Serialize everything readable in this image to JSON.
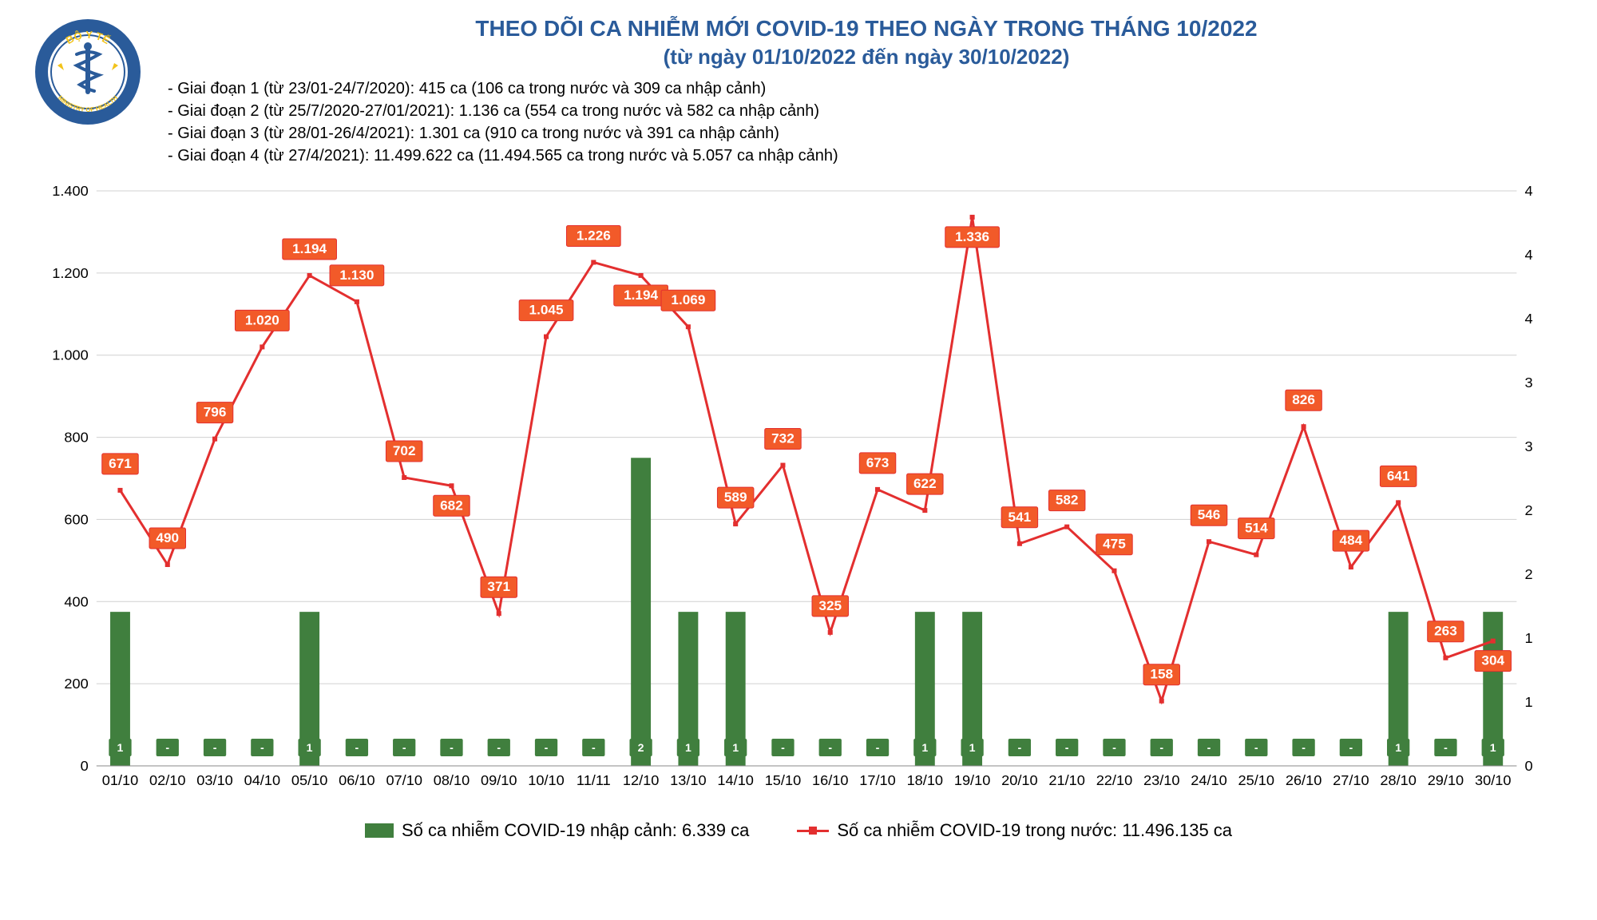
{
  "title_main": "THEO DÕI CA NHIỄM MỚI COVID-19 THEO NGÀY TRONG THÁNG 10/2022",
  "title_sub": "(từ ngày 01/10/2022 đến ngày 30/10/2022)",
  "phases": [
    "- Giai đoạn 1 (từ 23/01-24/7/2020): 415 ca (106 ca trong nước và 309 ca nhập cảnh)",
    "- Giai đoạn 2 (từ 25/7/2020-27/01/2021): 1.136 ca (554 ca trong nước và 582 ca nhập cảnh)",
    "- Giai đoạn 3 (từ 28/01-26/4/2021): 1.301 ca (910 ca trong nước và 391 ca nhập cảnh)",
    "- Giai đoạn 4 (từ 27/4/2021): 11.499.622 ca (11.494.565 ca trong nước và 5.057 ca nhập cảnh)"
  ],
  "legend_bar": "Số ca nhiễm COVID-19 nhập cảnh: 6.339 ca",
  "legend_line": "Số ca nhiễm COVID-19 trong nước: 11.496.135 ca",
  "chart": {
    "type": "combo-bar-line",
    "background_color": "#ffffff",
    "grid_color": "#d0d0d0",
    "bar_color": "#407f3e",
    "line_color": "#e32f2f",
    "label_bg": "#f25a29",
    "label_text_color": "#ffffff",
    "axis_font_size": 18,
    "label_font_size": 17,
    "bar_label_font_size": 14,
    "line_width": 3,
    "marker_size": 6,
    "y_left": {
      "min": 0,
      "max": 1400,
      "step": 200,
      "ticks": [
        "0",
        "200",
        "400",
        "600",
        "800",
        "1.000",
        "1.200",
        "1.400"
      ]
    },
    "y_right": {
      "min": 0,
      "max": 4.5,
      "ticks": [
        0,
        1,
        1,
        2,
        2,
        3,
        3,
        4,
        4,
        4
      ]
    },
    "categories": [
      "01/10",
      "02/10",
      "03/10",
      "04/10",
      "05/10",
      "06/10",
      "07/10",
      "08/10",
      "09/10",
      "10/10",
      "11/11",
      "12/10",
      "13/10",
      "14/10",
      "15/10",
      "16/10",
      "17/10",
      "18/10",
      "19/10",
      "20/10",
      "21/10",
      "22/10",
      "23/10",
      "24/10",
      "25/10",
      "26/10",
      "27/10",
      "28/10",
      "29/10",
      "30/10"
    ],
    "line_values": [
      671,
      490,
      796,
      1020,
      1194,
      1130,
      702,
      682,
      371,
      1045,
      1226,
      1194,
      1069,
      589,
      732,
      325,
      673,
      622,
      1336,
      541,
      582,
      475,
      158,
      546,
      514,
      826,
      484,
      641,
      263,
      304
    ],
    "line_labels": [
      "671",
      "490",
      "796",
      "1.020",
      "1.194",
      "1.130",
      "702",
      "682",
      "371",
      "1.045",
      "1.226",
      "1.194",
      "1.069",
      "589",
      "732",
      "325",
      "673",
      "622",
      "1.336",
      "541",
      "582",
      "475",
      "158",
      "546",
      "514",
      "826",
      "484",
      "641",
      "263",
      "304"
    ],
    "bar_values": [
      1,
      0,
      0,
      0,
      1,
      0,
      0,
      0,
      0,
      0,
      0,
      2,
      1,
      1,
      0,
      0,
      0,
      1,
      1,
      0,
      0,
      0,
      0,
      0,
      0,
      0,
      0,
      1,
      0,
      1
    ],
    "bar_labels": [
      "1",
      "-",
      "-",
      "-",
      "1",
      "-",
      "-",
      "-",
      "-",
      "-",
      "-",
      "2",
      "1",
      "1",
      "-",
      "-",
      "-",
      "1",
      "1",
      "-",
      "-",
      "-",
      "-",
      "-",
      "-",
      "-",
      "-",
      "1",
      "-",
      "1"
    ]
  },
  "logo": {
    "outer_text_top": "BỘ Y TẾ",
    "outer_text_bottom": "MINISTRY OF HEALTH",
    "ring_color": "#2a5b9a",
    "star_color": "#f2c31a",
    "bg_color": "#ffffff"
  }
}
